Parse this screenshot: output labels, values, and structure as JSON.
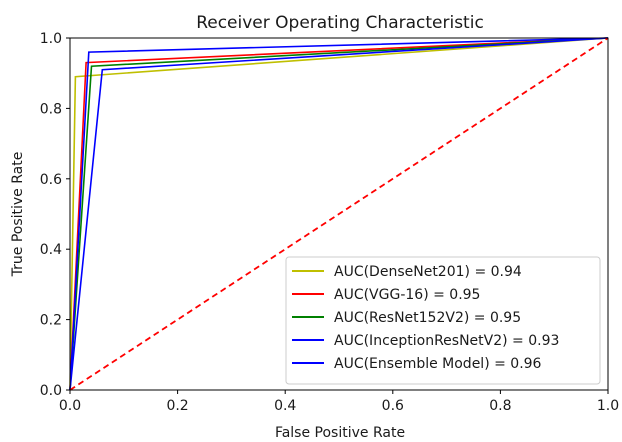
{
  "chart_data": {
    "type": "line",
    "title": "Receiver Operating Characteristic",
    "xlabel": "False Positive Rate",
    "ylabel": "True Positive Rate",
    "xlim": [
      0,
      1
    ],
    "ylim": [
      0,
      1
    ],
    "xticks": [
      "0.0",
      "0.2",
      "0.4",
      "0.6",
      "0.8",
      "1.0"
    ],
    "yticks": [
      "0.0",
      "0.2",
      "0.4",
      "0.6",
      "0.8",
      "1.0"
    ],
    "grid": false,
    "legend_position": "lower-right",
    "series": [
      {
        "name": "AUC(DenseNet201) = 0.94",
        "color": "#bfbf00",
        "x": [
          0,
          0.01,
          1
        ],
        "y": [
          0,
          0.89,
          1
        ]
      },
      {
        "name": "AUC(VGG-16) = 0.95",
        "color": "#ff0000",
        "x": [
          0,
          0.03,
          1
        ],
        "y": [
          0,
          0.93,
          1
        ]
      },
      {
        "name": "AUC(ResNet152V2) = 0.95",
        "color": "#008000",
        "x": [
          0,
          0.04,
          1
        ],
        "y": [
          0,
          0.92,
          1
        ]
      },
      {
        "name": "AUC(InceptionResNetV2) = 0.93",
        "color": "#0000ff",
        "x": [
          0,
          0.06,
          1
        ],
        "y": [
          0,
          0.91,
          1
        ]
      },
      {
        "name": "AUC(Ensemble Model) = 0.96",
        "color": "#0000ff",
        "x": [
          0,
          0.035,
          1
        ],
        "y": [
          0,
          0.96,
          1
        ]
      }
    ],
    "reference_line": {
      "color": "#ff0000",
      "style": "dashed",
      "x": [
        0,
        1
      ],
      "y": [
        0,
        1
      ]
    }
  }
}
